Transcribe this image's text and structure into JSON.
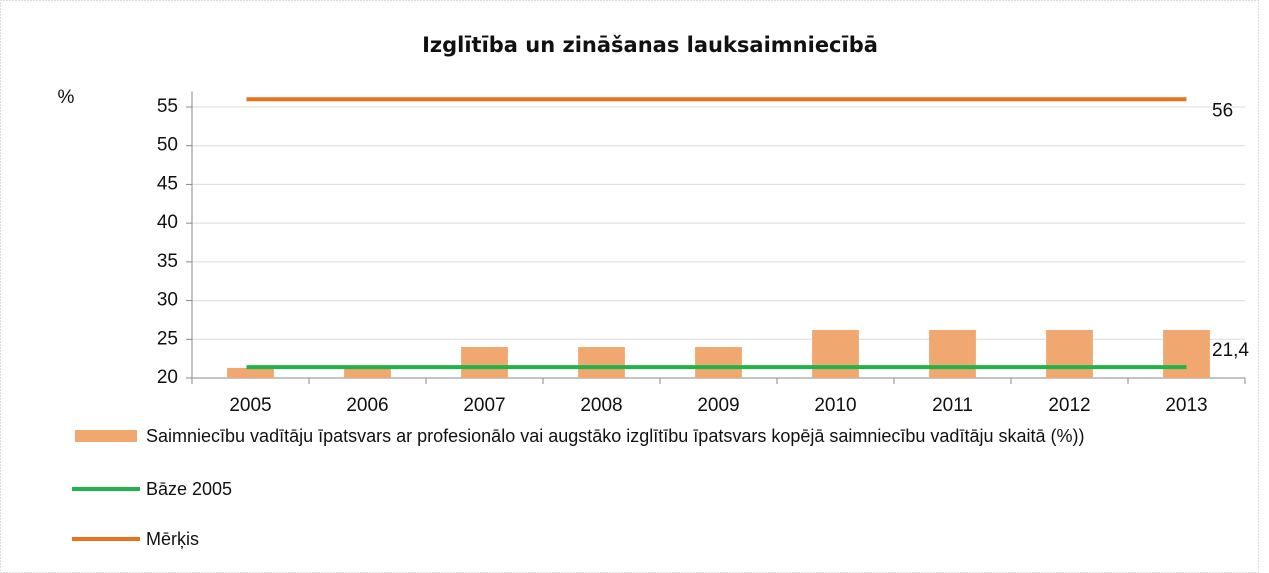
{
  "chart_data": {
    "type": "bar",
    "title": "Izglītība un zināšanas lauksaimniecībā",
    "y_label": "%",
    "categories": [
      "2005",
      "2006",
      "2007",
      "2008",
      "2009",
      "2010",
      "2011",
      "2012",
      "2013"
    ],
    "series": [
      {
        "name": "Saimniecību vadītāju īpatsvars ar profesionālo vai augstāko izglītību īpatsvars kopējā saimniecību vadītāju skaitā (%))",
        "type": "bar",
        "color": "#f0a870",
        "values": [
          21.3,
          21.3,
          24,
          24,
          24,
          26.2,
          26.2,
          26.2,
          26.2
        ]
      },
      {
        "name": "Bāze 2005",
        "type": "line",
        "color": "#1fb34a",
        "values": [
          21.4,
          21.4,
          21.4,
          21.4,
          21.4,
          21.4,
          21.4,
          21.4,
          21.4
        ],
        "value_labels": [
          null,
          null,
          null,
          null,
          null,
          null,
          null,
          null,
          "21,4"
        ]
      },
      {
        "name": "Mērķis",
        "type": "line",
        "color": "#e8731c",
        "values": [
          56,
          56,
          56,
          56,
          56,
          56,
          56,
          56,
          56
        ]
      }
    ],
    "ylim": [
      20,
      57
    ],
    "yticks": [
      20,
      25,
      30,
      35,
      40,
      45,
      50,
      55
    ],
    "grid": true
  }
}
